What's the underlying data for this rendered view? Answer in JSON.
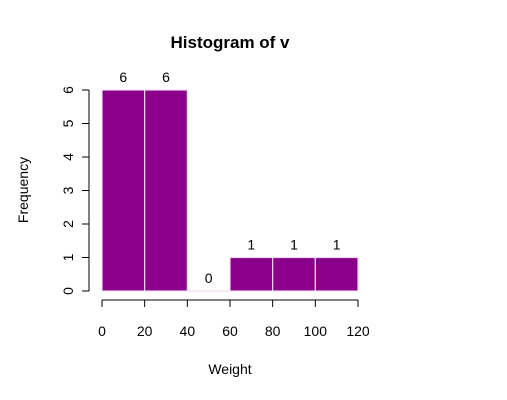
{
  "chart_data": {
    "type": "bar",
    "title": "Histogram of v",
    "xlabel": "Weight",
    "ylabel": "Frequency",
    "bins": [
      {
        "from": 0,
        "to": 20,
        "count": 6,
        "label": "6"
      },
      {
        "from": 20,
        "to": 40,
        "count": 6,
        "label": "6"
      },
      {
        "from": 40,
        "to": 60,
        "count": 0,
        "label": "0"
      },
      {
        "from": 60,
        "to": 80,
        "count": 1,
        "label": "1"
      },
      {
        "from": 80,
        "to": 100,
        "count": 1,
        "label": "1"
      },
      {
        "from": 100,
        "to": 120,
        "count": 1,
        "label": "1"
      }
    ],
    "x_ticks": [
      "0",
      "20",
      "40",
      "60",
      "80",
      "100",
      "120"
    ],
    "y_ticks": [
      "0",
      "1",
      "2",
      "3",
      "4",
      "5",
      "6"
    ],
    "xlim": [
      0,
      120
    ],
    "ylim": [
      0,
      6
    ],
    "grid": false,
    "bar_color": "#8b008b",
    "bar_border_color": "#f0d8f0"
  }
}
